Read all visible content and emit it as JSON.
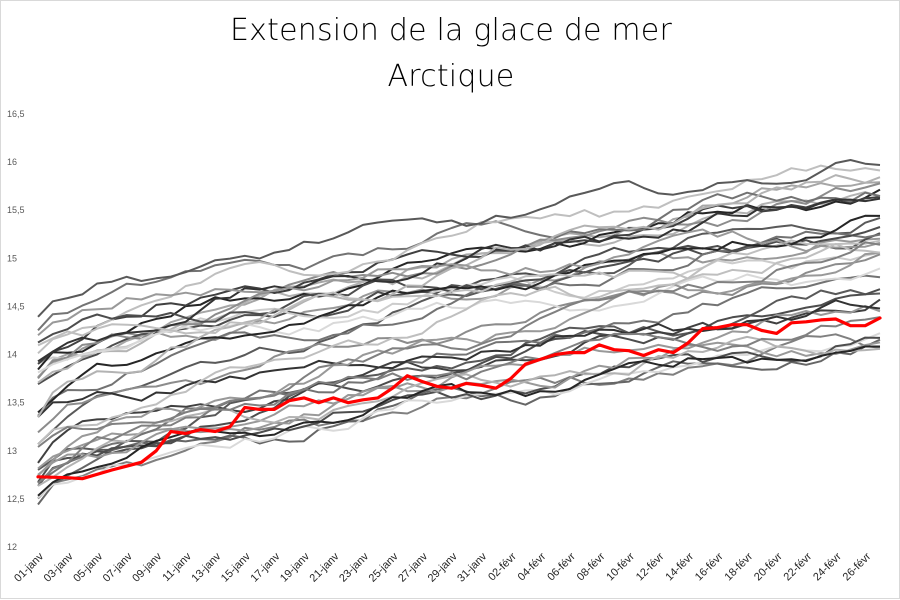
{
  "chart_data": {
    "type": "line",
    "title": "Extension de la glace de mer",
    "subtitle": "Arctique",
    "xlabel": "",
    "ylabel": "",
    "ylim": [
      12,
      16.5
    ],
    "y_ticks": [
      "12",
      "12,5",
      "13",
      "13,5",
      "14",
      "14,5",
      "15",
      "15,5",
      "16",
      "16,5"
    ],
    "grid": false,
    "legend": "none",
    "x_tick_labels": [
      "01-janv",
      "03-janv",
      "05-janv",
      "07-janv",
      "09-janv",
      "11-janv",
      "13-janv",
      "15-janv",
      "17-janv",
      "19-janv",
      "21-janv",
      "23-janv",
      "25-janv",
      "27-janv",
      "29-janv",
      "31-janv",
      "02-févr",
      "04-févr",
      "06-févr",
      "08-févr",
      "10-févr",
      "12-févr",
      "14-févr",
      "16-févr",
      "18-févr",
      "20-févr",
      "22-févr",
      "24-févr",
      "26-févr"
    ],
    "x_day_count": 57,
    "highlight_color": "#ff0000",
    "series": [
      {
        "color": "#ff0000",
        "width": 3.2,
        "values": [
          [
            0,
            12.73
          ],
          [
            2,
            12.72
          ],
          [
            3,
            12.71
          ],
          [
            5,
            12.8
          ],
          [
            7,
            12.88
          ],
          [
            8,
            13.0
          ],
          [
            9,
            13.2
          ],
          [
            10,
            13.18
          ],
          [
            11,
            13.22
          ],
          [
            12,
            13.2
          ],
          [
            13,
            13.25
          ],
          [
            14,
            13.45
          ],
          [
            15,
            13.43
          ],
          [
            16,
            13.43
          ],
          [
            17,
            13.52
          ],
          [
            18,
            13.55
          ],
          [
            19,
            13.5
          ],
          [
            20,
            13.55
          ],
          [
            21,
            13.5
          ],
          [
            22,
            13.53
          ],
          [
            23,
            13.55
          ],
          [
            24,
            13.65
          ],
          [
            25,
            13.78
          ],
          [
            26,
            13.72
          ],
          [
            27,
            13.67
          ],
          [
            28,
            13.65
          ],
          [
            29,
            13.7
          ],
          [
            30,
            13.68
          ],
          [
            31,
            13.65
          ],
          [
            32,
            13.75
          ],
          [
            33,
            13.9
          ],
          [
            34,
            13.95
          ],
          [
            35,
            14.0
          ],
          [
            36,
            14.02
          ],
          [
            37,
            14.02
          ],
          [
            38,
            14.1
          ],
          [
            39,
            14.05
          ],
          [
            40,
            14.04
          ],
          [
            41,
            13.99
          ],
          [
            42,
            14.05
          ],
          [
            43,
            14.02
          ],
          [
            44,
            14.12
          ],
          [
            45,
            14.27
          ],
          [
            46,
            14.28
          ],
          [
            47,
            14.31
          ],
          [
            48,
            14.31
          ],
          [
            49,
            14.25
          ],
          [
            50,
            14.22
          ],
          [
            51,
            14.33
          ],
          [
            52,
            14.34
          ],
          [
            53,
            14.36
          ],
          [
            54,
            14.37
          ],
          [
            55,
            14.3
          ],
          [
            56,
            14.3
          ],
          [
            57,
            14.38
          ]
        ]
      }
    ]
  }
}
